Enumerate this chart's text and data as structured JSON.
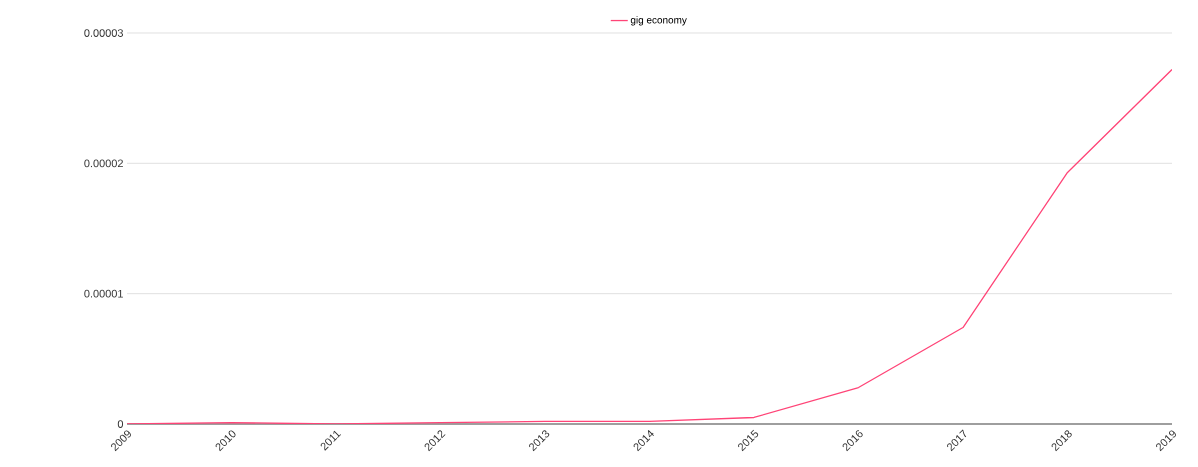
{
  "chart_data": {
    "type": "line",
    "categories": [
      "2009",
      "2010",
      "2011",
      "2012",
      "2013",
      "2014",
      "2015",
      "2016",
      "2017",
      "2018",
      "2019"
    ],
    "series": [
      {
        "name": "gig economy",
        "color": "#ff4477",
        "values": [
          0,
          1e-07,
          0,
          1e-07,
          2e-07,
          2e-07,
          5e-07,
          2.8e-06,
          7.4e-06,
          1.93e-05,
          2.72e-05
        ]
      }
    ],
    "ylim": [
      0,
      3e-05
    ],
    "yticks": [
      {
        "value": 0,
        "label": "0"
      },
      {
        "value": 1e-05,
        "label": "0.00001"
      },
      {
        "value": 2e-05,
        "label": "0.00002"
      },
      {
        "value": 3e-05,
        "label": "0.00003"
      }
    ],
    "grid": "y",
    "legend": "top",
    "marker": "none",
    "line_style": "solid"
  }
}
